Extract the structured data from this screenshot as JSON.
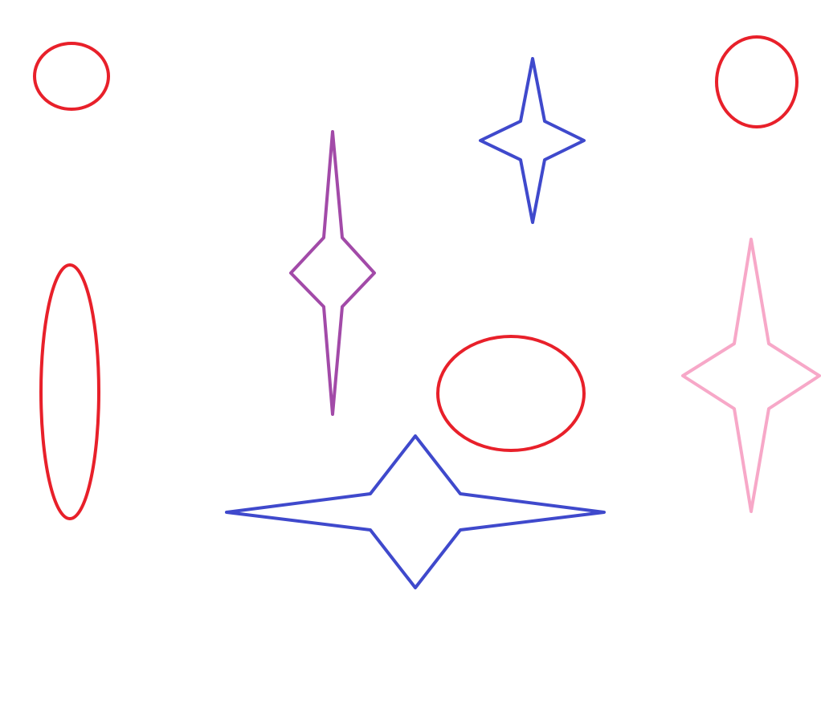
{
  "colors": {
    "background": "#ffffff",
    "red": "#e8202a",
    "blue": "#3f49cc",
    "purple": "#a24aa8",
    "pink": "#f7a8c8"
  },
  "shapes": [
    {
      "kind": "ellipse",
      "color_key": "red"
    },
    {
      "kind": "ellipse",
      "color_key": "red"
    },
    {
      "kind": "ellipse",
      "color_key": "red"
    },
    {
      "kind": "ellipse",
      "color_key": "red"
    },
    {
      "kind": "four-point-star",
      "color_key": "blue"
    },
    {
      "kind": "four-point-star",
      "color_key": "purple"
    },
    {
      "kind": "four-point-star",
      "color_key": "pink"
    },
    {
      "kind": "four-point-star",
      "color_key": "blue"
    }
  ]
}
